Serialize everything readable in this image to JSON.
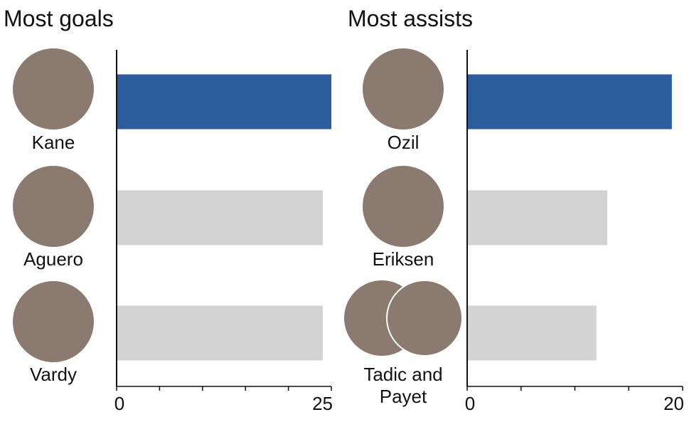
{
  "chart_data": [
    {
      "type": "bar",
      "orientation": "horizontal",
      "title": "Most goals",
      "categories": [
        "Kane",
        "Aguero",
        "Vardy"
      ],
      "values": [
        25,
        24,
        24
      ],
      "colors": [
        "#2b5c9b",
        "#d3d3d3",
        "#d3d3d3"
      ],
      "xlim": [
        0,
        25
      ],
      "xticks": [
        0,
        25
      ],
      "minor_xticks": [
        5,
        10,
        15,
        20
      ]
    },
    {
      "type": "bar",
      "orientation": "horizontal",
      "title": "Most assists",
      "categories": [
        "Ozil",
        "Eriksen",
        "Tadic and Payet"
      ],
      "values": [
        19,
        13,
        12
      ],
      "colors": [
        "#2b5c9b",
        "#d3d3d3",
        "#d3d3d3"
      ],
      "xlim": [
        0,
        20
      ],
      "xticks": [
        0,
        20
      ],
      "minor_xticks": [
        5,
        10,
        15
      ]
    }
  ]
}
